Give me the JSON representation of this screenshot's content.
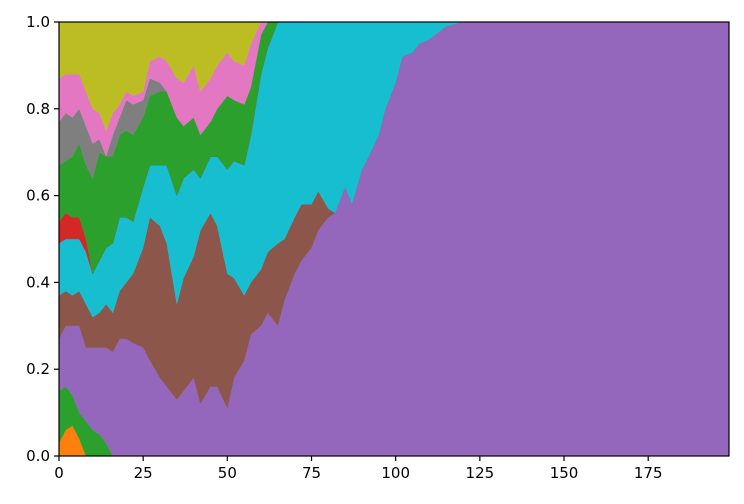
{
  "chart_data": {
    "type": "area",
    "stacked": true,
    "normalized": true,
    "title": "",
    "xlabel": "",
    "ylabel": "",
    "xlim": [
      0,
      199
    ],
    "ylim": [
      0,
      1
    ],
    "x_ticks": [
      0,
      25,
      50,
      75,
      100,
      125,
      150,
      175
    ],
    "x_tick_labels": [
      "0",
      "25",
      "50",
      "75",
      "100",
      "125",
      "150",
      "175"
    ],
    "y_ticks": [
      0,
      0.2,
      0.4,
      0.6,
      0.8,
      1
    ],
    "y_tick_labels": [
      "0.0",
      "0.2",
      "0.4",
      "0.6",
      "0.8",
      "1.0"
    ],
    "grid": false,
    "legend": "none",
    "x": [
      0,
      2,
      4,
      6,
      8,
      10,
      12,
      14,
      16,
      18,
      20,
      22,
      25,
      27,
      30,
      32,
      35,
      37,
      40,
      42,
      45,
      47,
      50,
      52,
      55,
      57,
      60,
      62,
      65,
      67,
      70,
      72,
      75,
      77,
      80,
      82,
      85,
      87,
      90,
      92,
      95,
      97,
      100,
      102,
      105,
      107,
      110,
      115,
      120,
      150,
      199
    ],
    "series": [
      {
        "color": "#ff7f0e",
        "values": [
          0.03,
          0.06,
          0.07,
          0.04,
          0,
          0,
          0,
          0,
          0,
          0,
          0,
          0,
          0,
          0,
          0,
          0,
          0,
          0,
          0,
          0,
          0,
          0,
          0,
          0,
          0,
          0,
          0,
          0,
          0,
          0,
          0,
          0,
          0,
          0,
          0,
          0,
          0,
          0,
          0,
          0,
          0,
          0,
          0,
          0,
          0,
          0,
          0,
          0,
          0,
          0,
          0
        ]
      },
      {
        "color": "#2ca02c",
        "values": [
          0.12,
          0.1,
          0.07,
          0.06,
          0.08,
          0.06,
          0.05,
          0.03,
          0,
          0,
          0,
          0,
          0,
          0,
          0,
          0,
          0,
          0,
          0,
          0,
          0,
          0,
          0,
          0,
          0,
          0,
          0,
          0,
          0,
          0,
          0,
          0,
          0,
          0,
          0,
          0,
          0,
          0,
          0,
          0,
          0,
          0,
          0,
          0,
          0,
          0,
          0,
          0,
          0,
          0,
          0
        ]
      },
      {
        "color": "#9467bd",
        "values": [
          0.12,
          0.14,
          0.16,
          0.2,
          0.17,
          0.19,
          0.2,
          0.22,
          0.24,
          0.27,
          0.27,
          0.26,
          0.25,
          0.22,
          0.18,
          0.16,
          0.13,
          0.15,
          0.18,
          0.12,
          0.16,
          0.16,
          0.11,
          0.18,
          0.22,
          0.28,
          0.3,
          0.33,
          0.3,
          0.36,
          0.42,
          0.45,
          0.48,
          0.52,
          0.55,
          0.56,
          0.62,
          0.58,
          0.66,
          0.69,
          0.74,
          0.8,
          0.86,
          0.92,
          0.93,
          0.95,
          0.96,
          0.99,
          1,
          1,
          1
        ]
      },
      {
        "color": "#8c564b",
        "values": [
          0.1,
          0.08,
          0.07,
          0.08,
          0.1,
          0.07,
          0.08,
          0.1,
          0.09,
          0.11,
          0.13,
          0.16,
          0.23,
          0.33,
          0.35,
          0.33,
          0.22,
          0.26,
          0.28,
          0.4,
          0.4,
          0.37,
          0.31,
          0.23,
          0.15,
          0.12,
          0.13,
          0.14,
          0.19,
          0.14,
          0.13,
          0.13,
          0.1,
          0.09,
          0.02,
          0,
          0,
          0,
          0,
          0,
          0,
          0,
          0,
          0,
          0,
          0,
          0,
          0,
          0,
          0,
          0
        ]
      },
      {
        "color": "#17becf",
        "values": [
          0.12,
          0.12,
          0.13,
          0.12,
          0.12,
          0.1,
          0.12,
          0.13,
          0.16,
          0.17,
          0.15,
          0.12,
          0.14,
          0.12,
          0.14,
          0.18,
          0.25,
          0.23,
          0.2,
          0.12,
          0.13,
          0.16,
          0.24,
          0.27,
          0.3,
          0.34,
          0.45,
          0.47,
          0.51,
          0.5,
          0.45,
          0.42,
          0.42,
          0.39,
          0.43,
          0.44,
          0.38,
          0.42,
          0.34,
          0.31,
          0.26,
          0.2,
          0.14,
          0.08,
          0.07,
          0.05,
          0.04,
          0.01,
          0,
          0,
          0
        ]
      },
      {
        "color": "#d62728",
        "values": [
          0.05,
          0.06,
          0.05,
          0.05,
          0.03,
          0,
          0,
          0,
          0,
          0,
          0,
          0,
          0,
          0,
          0,
          0,
          0,
          0,
          0,
          0,
          0,
          0,
          0,
          0,
          0,
          0,
          0,
          0,
          0,
          0,
          0,
          0,
          0,
          0,
          0,
          0,
          0,
          0,
          0,
          0,
          0,
          0,
          0,
          0,
          0,
          0,
          0,
          0,
          0,
          0,
          0
        ]
      },
      {
        "color": "#2ca02c",
        "values": [
          0.13,
          0.12,
          0.14,
          0.17,
          0.17,
          0.22,
          0.25,
          0.21,
          0.2,
          0.19,
          0.2,
          0.2,
          0.16,
          0.16,
          0.17,
          0.17,
          0.18,
          0.12,
          0.12,
          0.1,
          0.08,
          0.11,
          0.17,
          0.14,
          0.14,
          0.11,
          0.09,
          0.06,
          0,
          0,
          0,
          0,
          0,
          0,
          0,
          0,
          0,
          0,
          0,
          0,
          0,
          0,
          0,
          0,
          0,
          0,
          0,
          0,
          0,
          0,
          0
        ]
      },
      {
        "color": "#7f7f7f",
        "values": [
          0.1,
          0.11,
          0.09,
          0.08,
          0.09,
          0.08,
          0.03,
          0,
          0.05,
          0.04,
          0.07,
          0.07,
          0.04,
          0.04,
          0.02,
          0,
          0,
          0,
          0,
          0,
          0,
          0,
          0,
          0,
          0,
          0,
          0,
          0,
          0,
          0,
          0,
          0,
          0,
          0,
          0,
          0,
          0,
          0,
          0,
          0,
          0,
          0,
          0,
          0,
          0,
          0,
          0,
          0,
          0,
          0,
          0
        ]
      },
      {
        "color": "#e377c2",
        "values": [
          0.1,
          0.09,
          0.1,
          0.08,
          0.08,
          0.08,
          0.06,
          0.06,
          0.05,
          0.03,
          0.02,
          0.02,
          0.02,
          0.04,
          0.06,
          0.07,
          0.09,
          0.1,
          0.12,
          0.1,
          0.1,
          0.1,
          0.1,
          0.09,
          0.09,
          0.1,
          0.03,
          0,
          0,
          0,
          0,
          0,
          0,
          0,
          0,
          0,
          0,
          0,
          0,
          0,
          0,
          0,
          0,
          0,
          0,
          0,
          0,
          0,
          0,
          0,
          0
        ]
      },
      {
        "color": "#bcbd22",
        "values": [
          0.13,
          0.12,
          0.12,
          0.12,
          0.16,
          0.2,
          0.21,
          0.25,
          0.21,
          0.19,
          0.16,
          0.17,
          0.16,
          0.09,
          0.08,
          0.09,
          0.13,
          0.14,
          0.1,
          0.16,
          0.13,
          0.1,
          0.07,
          0.09,
          0.1,
          0.05,
          0,
          0,
          0,
          0,
          0,
          0,
          0,
          0,
          0,
          0,
          0,
          0,
          0,
          0,
          0,
          0,
          0,
          0,
          0,
          0,
          0,
          0,
          0,
          0,
          0
        ]
      }
    ]
  }
}
